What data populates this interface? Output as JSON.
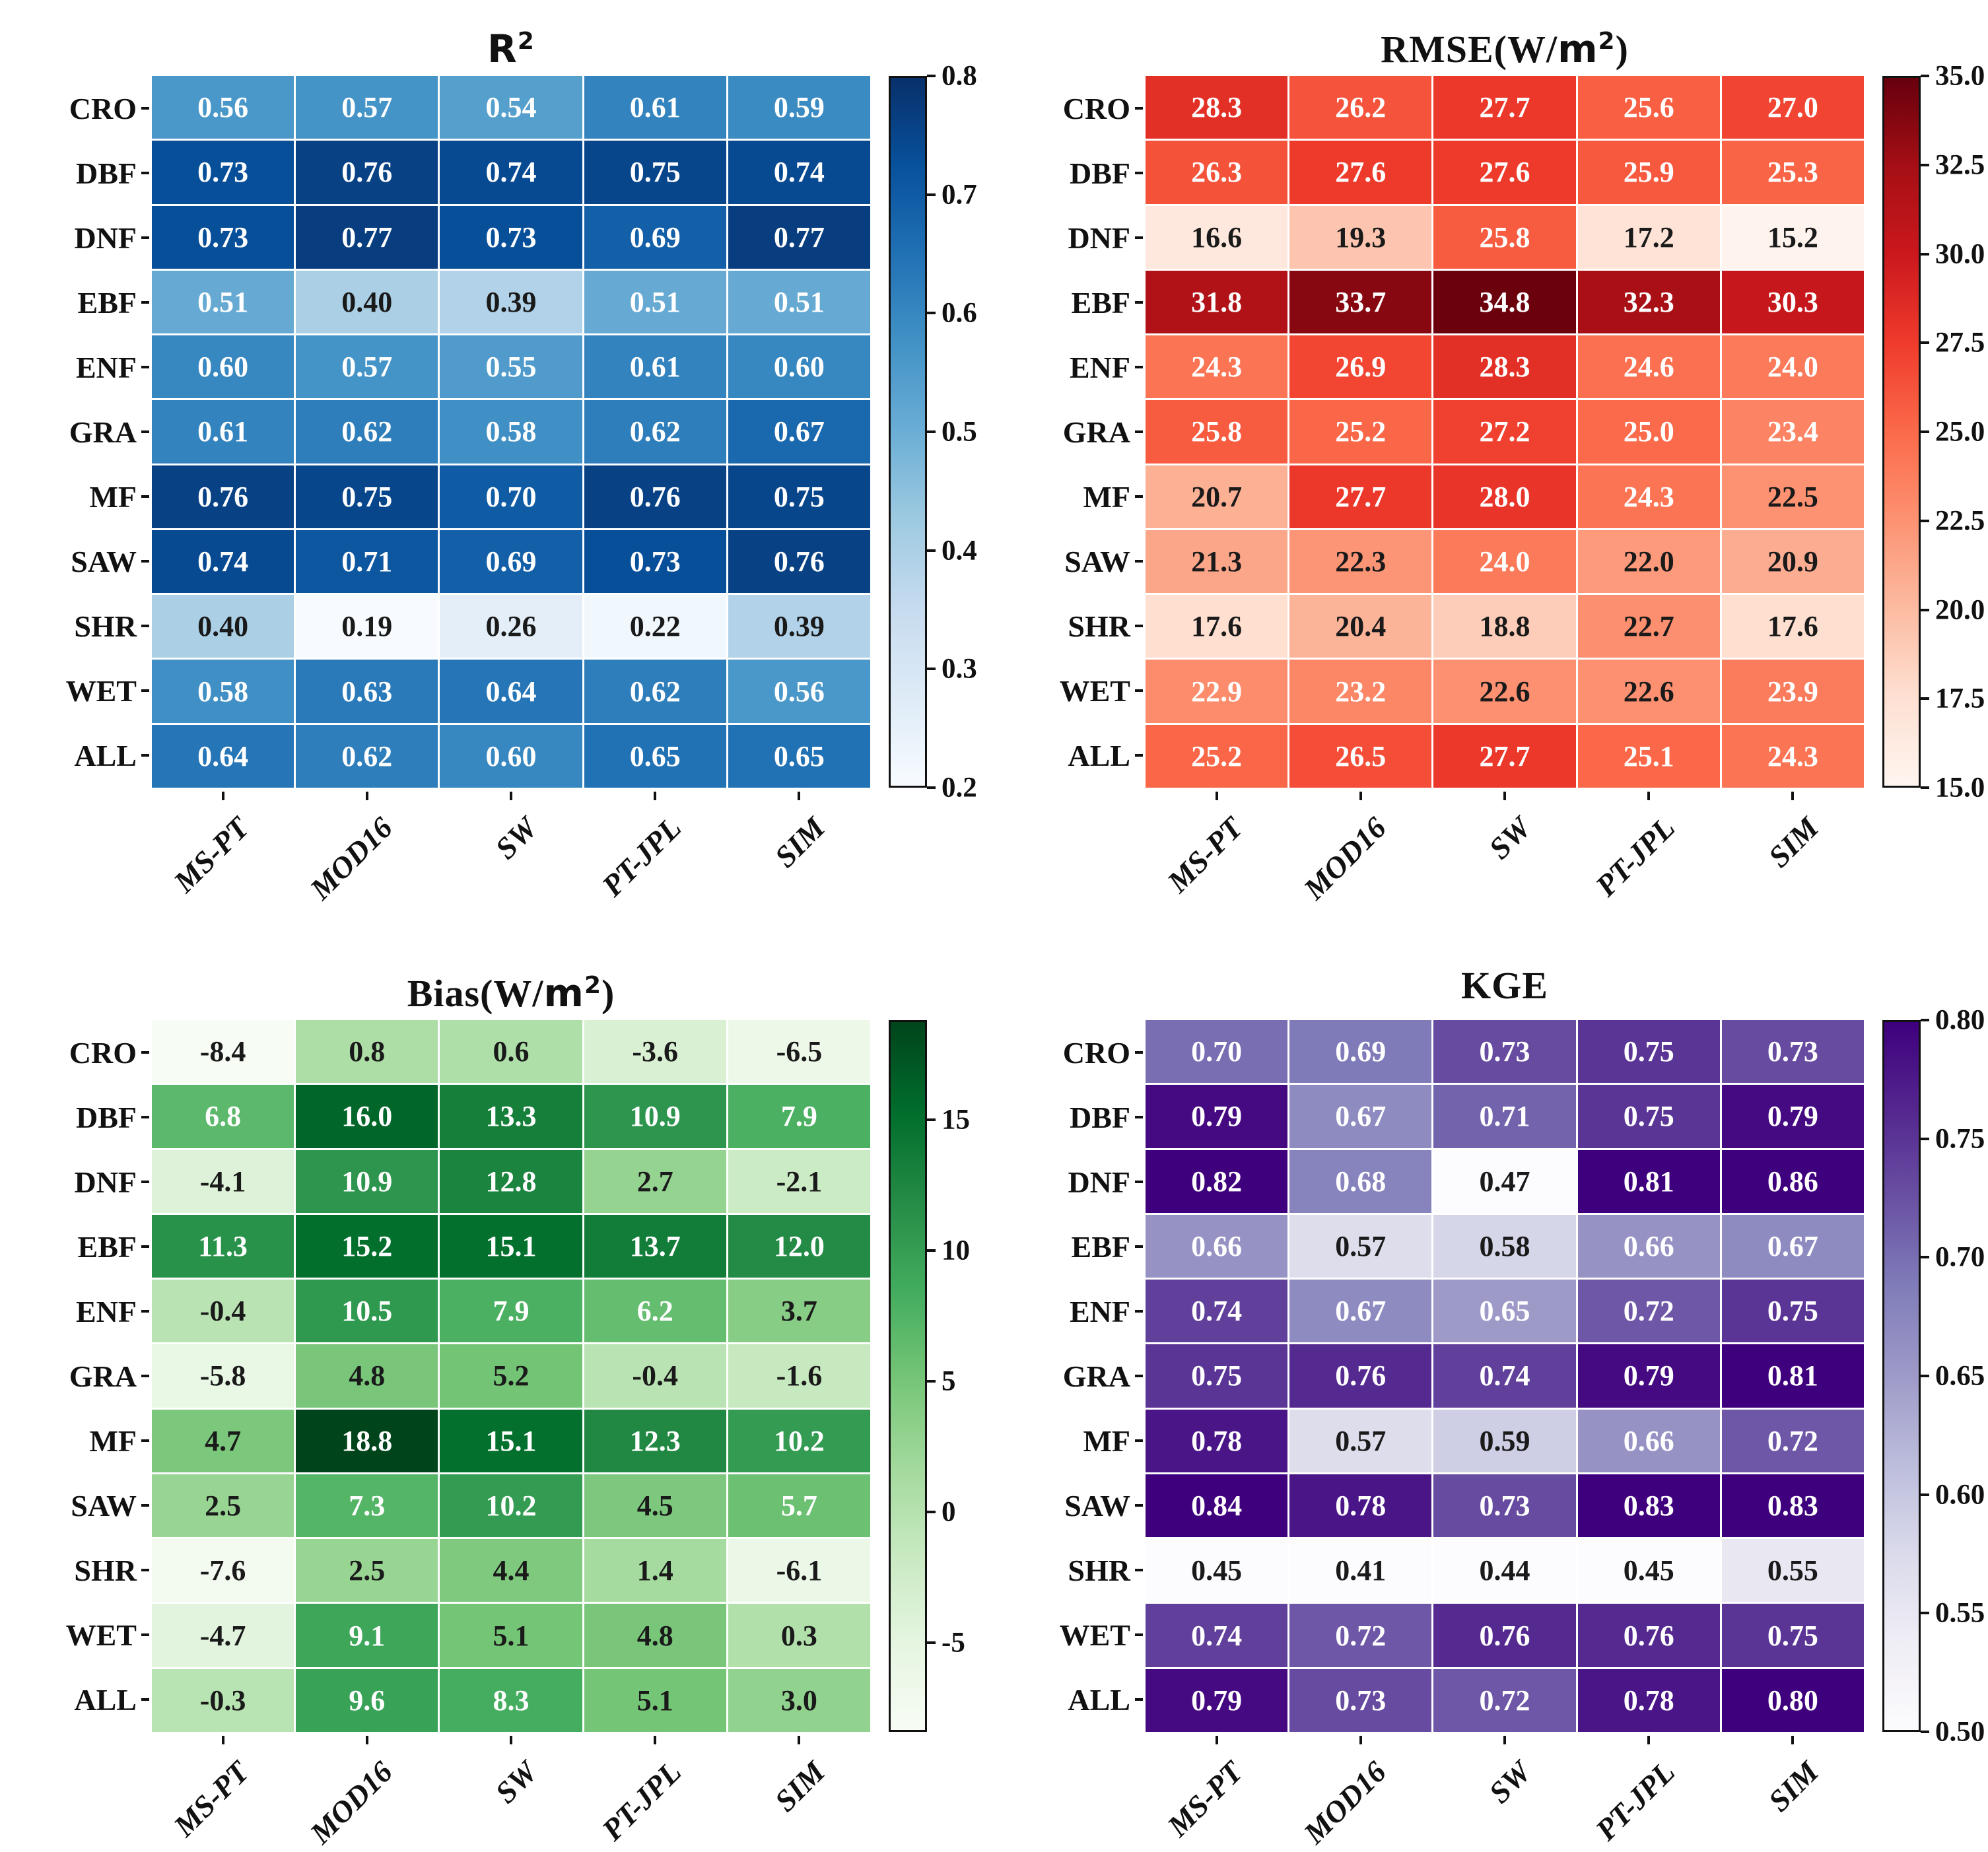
{
  "figure": {
    "background": "#ffffff",
    "text_color": "#111111"
  },
  "chart_data": [
    {
      "type": "heatmap",
      "title": "R²",
      "rows": [
        "CRO",
        "DBF",
        "DNF",
        "EBF",
        "ENF",
        "GRA",
        "MF",
        "SAW",
        "SHR",
        "WET",
        "ALL"
      ],
      "columns": [
        "MS-PT",
        "MOD16",
        "SW",
        "PT-JPL",
        "SIM"
      ],
      "values": [
        [
          0.56,
          0.57,
          0.54,
          0.61,
          0.59
        ],
        [
          0.73,
          0.76,
          0.74,
          0.75,
          0.74
        ],
        [
          0.73,
          0.77,
          0.73,
          0.69,
          0.77
        ],
        [
          0.51,
          0.4,
          0.39,
          0.51,
          0.51
        ],
        [
          0.6,
          0.57,
          0.55,
          0.61,
          0.6
        ],
        [
          0.61,
          0.62,
          0.58,
          0.62,
          0.67
        ],
        [
          0.76,
          0.75,
          0.7,
          0.76,
          0.75
        ],
        [
          0.74,
          0.71,
          0.69,
          0.73,
          0.76
        ],
        [
          0.4,
          0.19,
          0.26,
          0.22,
          0.39
        ],
        [
          0.58,
          0.63,
          0.64,
          0.62,
          0.56
        ],
        [
          0.64,
          0.62,
          0.6,
          0.65,
          0.65
        ]
      ],
      "colormap": "Blues",
      "color_scale_min": 0.2,
      "color_scale_max": 0.8,
      "colorbar_ticks": [
        0.8,
        0.7,
        0.6,
        0.5,
        0.4,
        0.3,
        0.2
      ],
      "colorbar_tick_decimals": 1,
      "value_decimals": 2,
      "text_white_above_norm": 0.45,
      "legend_position": "right",
      "grid": false
    },
    {
      "type": "heatmap",
      "title": "RMSE(W/m²)",
      "rows": [
        "CRO",
        "DBF",
        "DNF",
        "EBF",
        "ENF",
        "GRA",
        "MF",
        "SAW",
        "SHR",
        "WET",
        "ALL"
      ],
      "columns": [
        "MS-PT",
        "MOD16",
        "SW",
        "PT-JPL",
        "SIM"
      ],
      "values": [
        [
          28.3,
          26.2,
          27.7,
          25.6,
          27.0
        ],
        [
          26.3,
          27.6,
          27.6,
          25.9,
          25.3
        ],
        [
          16.6,
          19.3,
          25.8,
          17.2,
          15.2
        ],
        [
          31.8,
          33.7,
          34.8,
          32.3,
          30.3
        ],
        [
          24.3,
          26.9,
          28.3,
          24.6,
          24.0
        ],
        [
          25.8,
          25.2,
          27.2,
          25.0,
          23.4
        ],
        [
          20.7,
          27.7,
          28.0,
          24.3,
          22.5
        ],
        [
          21.3,
          22.3,
          24.0,
          22.0,
          20.9
        ],
        [
          17.6,
          20.4,
          18.8,
          22.7,
          17.6
        ],
        [
          22.9,
          23.2,
          22.6,
          22.6,
          23.9
        ],
        [
          25.2,
          26.5,
          27.7,
          25.1,
          24.3
        ]
      ],
      "colormap": "Reds",
      "color_scale_min": 15.0,
      "color_scale_max": 35.0,
      "colorbar_ticks": [
        35.0,
        32.5,
        30.0,
        27.5,
        25.0,
        22.5,
        20.0,
        17.5,
        15.0
      ],
      "colorbar_tick_decimals": 1,
      "value_decimals": 1,
      "text_white_above_norm": 0.39,
      "legend_position": "right",
      "grid": false
    },
    {
      "type": "heatmap",
      "title": "Bias(W/m²)",
      "rows": [
        "CRO",
        "DBF",
        "DNF",
        "EBF",
        "ENF",
        "GRA",
        "MF",
        "SAW",
        "SHR",
        "WET",
        "ALL"
      ],
      "columns": [
        "MS-PT",
        "MOD16",
        "SW",
        "PT-JPL",
        "SIM"
      ],
      "values": [
        [
          -8.4,
          0.8,
          0.6,
          -3.6,
          -6.5
        ],
        [
          6.8,
          16.0,
          13.3,
          10.9,
          7.9
        ],
        [
          -4.1,
          10.9,
          12.8,
          2.7,
          -2.1
        ],
        [
          11.3,
          15.2,
          15.1,
          13.7,
          12.0
        ],
        [
          -0.4,
          10.5,
          7.9,
          6.2,
          3.7
        ],
        [
          -5.8,
          4.8,
          5.2,
          -0.4,
          -1.6
        ],
        [
          4.7,
          18.8,
          15.1,
          12.3,
          10.2
        ],
        [
          2.5,
          7.3,
          10.2,
          4.5,
          5.7
        ],
        [
          -7.6,
          2.5,
          4.4,
          1.4,
          -6.1
        ],
        [
          -4.7,
          9.1,
          5.1,
          4.8,
          0.3
        ],
        [
          -0.3,
          9.6,
          8.3,
          5.1,
          3.0
        ]
      ],
      "colormap": "Greens",
      "color_scale_min": -8.4,
      "color_scale_max": 18.8,
      "colorbar_ticks": [
        15,
        10,
        5,
        0,
        -5
      ],
      "colorbar_tick_decimals": 0,
      "value_decimals": 1,
      "text_white_above_norm": 0.51,
      "legend_position": "right",
      "grid": false
    },
    {
      "type": "heatmap",
      "title": "KGE",
      "rows": [
        "CRO",
        "DBF",
        "DNF",
        "EBF",
        "ENF",
        "GRA",
        "MF",
        "SAW",
        "SHR",
        "WET",
        "ALL"
      ],
      "columns": [
        "MS-PT",
        "MOD16",
        "SW",
        "PT-JPL",
        "SIM"
      ],
      "values": [
        [
          0.7,
          0.69,
          0.73,
          0.75,
          0.73
        ],
        [
          0.79,
          0.67,
          0.71,
          0.75,
          0.79
        ],
        [
          0.82,
          0.68,
          0.47,
          0.81,
          0.86
        ],
        [
          0.66,
          0.57,
          0.58,
          0.66,
          0.67
        ],
        [
          0.74,
          0.67,
          0.65,
          0.72,
          0.75
        ],
        [
          0.75,
          0.76,
          0.74,
          0.79,
          0.81
        ],
        [
          0.78,
          0.57,
          0.59,
          0.66,
          0.72
        ],
        [
          0.84,
          0.78,
          0.73,
          0.83,
          0.83
        ],
        [
          0.45,
          0.41,
          0.44,
          0.45,
          0.55
        ],
        [
          0.74,
          0.72,
          0.76,
          0.76,
          0.75
        ],
        [
          0.79,
          0.73,
          0.72,
          0.78,
          0.8
        ]
      ],
      "colormap": "Purples",
      "color_scale_min": 0.5,
      "color_scale_max": 0.8,
      "colorbar_ticks": [
        0.8,
        0.75,
        0.7,
        0.65,
        0.6,
        0.55,
        0.5
      ],
      "colorbar_tick_decimals": 2,
      "value_decimals": 2,
      "text_white_above_norm": 0.45,
      "legend_position": "right",
      "grid": false
    }
  ]
}
